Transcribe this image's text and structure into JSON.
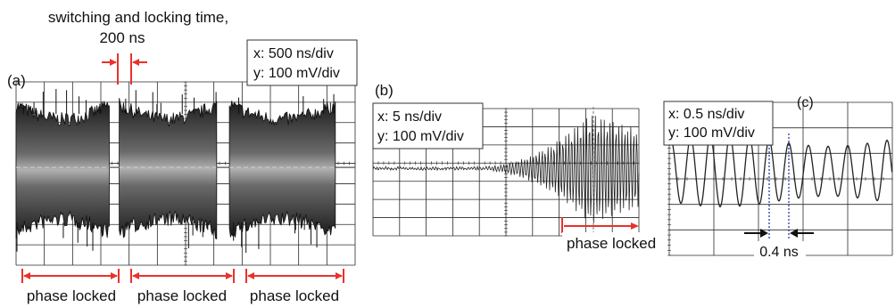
{
  "chart_data": [
    {
      "type": "line",
      "panel_label": "(a)",
      "scale_box": {
        "x": "x: 500 ns/div",
        "y": "y: 100 mV/div"
      },
      "annotation": {
        "line1": "switching and locking time,",
        "line2": "200 ns"
      },
      "bracket_labels": [
        "phase locked",
        "phase locked",
        "phase locked"
      ],
      "bursts": [
        {
          "start_div": 0.0,
          "end_div": 3.3
        },
        {
          "start_div": 3.65,
          "end_div": 7.1
        },
        {
          "start_div": 7.55,
          "end_div": 11.3
        }
      ],
      "divisions": {
        "x": 12,
        "y": 9
      }
    },
    {
      "type": "line",
      "panel_label": "(b)",
      "scale_box": {
        "x": "x: 5 ns/div",
        "y": "y: 100 mV/div"
      },
      "bracket_label": "phase locked",
      "onset_div": 6.4,
      "divisions": {
        "x": 10,
        "y": 7
      }
    },
    {
      "type": "line",
      "panel_label": "(c)",
      "scale_box": {
        "x": "x: 0.5 ns/div",
        "y": "y: 100 mV/div"
      },
      "period_label": "0.4 ns",
      "period_ns": 0.4,
      "divisions": {
        "x": 5,
        "y": 6
      }
    }
  ],
  "colors": {
    "accent": "#e8322c",
    "trace": "#222222",
    "grid": "#2a2a2a",
    "period_marker": "#1a2a9a"
  }
}
